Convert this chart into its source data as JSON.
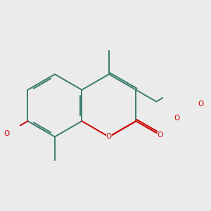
{
  "bg": "#ebebeb",
  "bc": "#3a7d6e",
  "oc": "#cc0000",
  "lw": 1.4,
  "dbo": 0.055,
  "fs": 7.5,
  "figsize": [
    3.0,
    3.0
  ],
  "dpi": 100,
  "xlim": [
    -2.2,
    2.4
  ],
  "ylim": [
    -1.8,
    1.8
  ]
}
